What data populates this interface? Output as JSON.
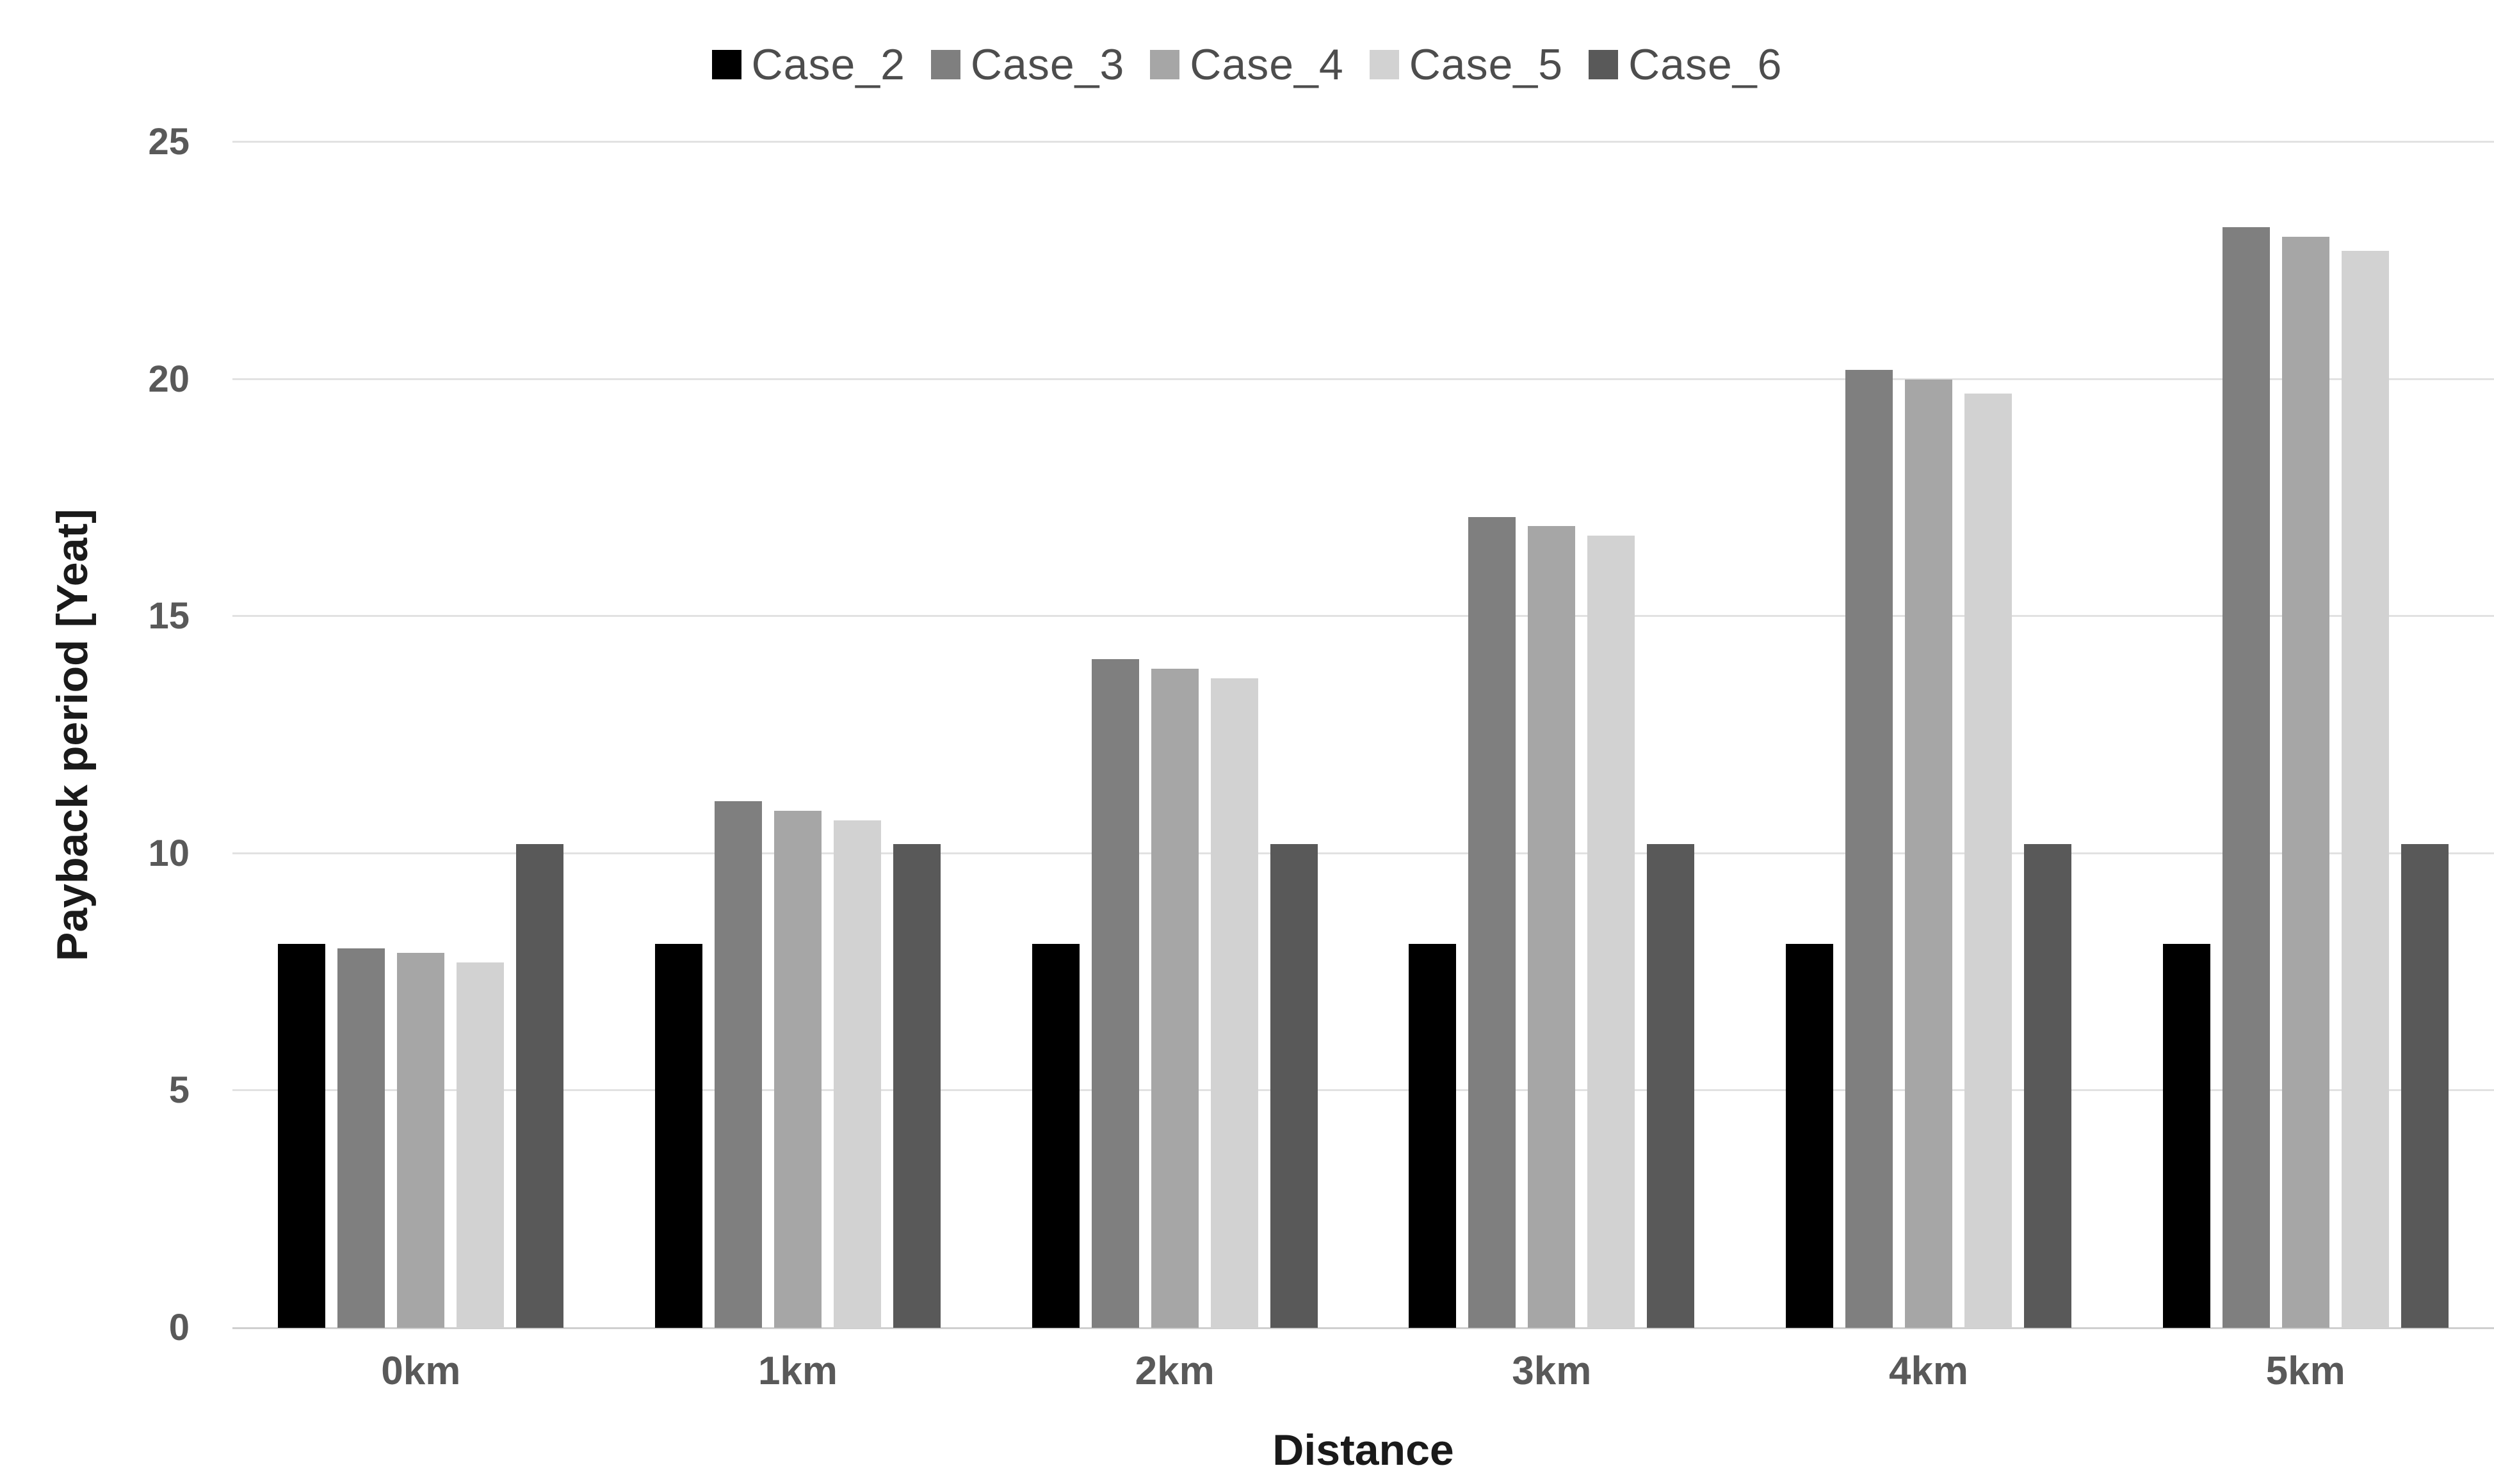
{
  "chart_data": {
    "type": "bar",
    "title": "",
    "categories": [
      "0km",
      "1km",
      "2km",
      "3km",
      "4km",
      "5km"
    ],
    "series": [
      {
        "name": "Case_2",
        "color": "#000000",
        "values": [
          8.1,
          8.1,
          8.1,
          8.1,
          8.1,
          8.1
        ]
      },
      {
        "name": "Case_3",
        "color": "#7f7f7f",
        "values": [
          8.0,
          11.1,
          14.1,
          17.1,
          20.2,
          23.2
        ]
      },
      {
        "name": "Case_4",
        "color": "#a6a6a6",
        "values": [
          7.9,
          10.9,
          13.9,
          16.9,
          20.0,
          23.0
        ]
      },
      {
        "name": "Case_5",
        "color": "#d2d2d2",
        "values": [
          7.7,
          10.7,
          13.7,
          16.7,
          19.7,
          22.7
        ]
      },
      {
        "name": "Case_6",
        "color": "#595959",
        "values": [
          10.2,
          10.2,
          10.2,
          10.2,
          10.2,
          10.2
        ]
      }
    ],
    "xlabel": "Distance",
    "ylabel": "Payback period [Yeat]",
    "ylim": [
      0,
      25
    ],
    "yticks": [
      0,
      5,
      10,
      15,
      20,
      25
    ],
    "grid": "horizontal",
    "legend_position": "top-center"
  },
  "styles": {
    "background": "#ffffff",
    "gridline_color": "#e2e2e2",
    "baseline_color": "#cfcfcf",
    "tick_label_color": "#595959",
    "axis_title_color": "#1a1a1a",
    "legend_text_color": "#4d4d4d"
  }
}
